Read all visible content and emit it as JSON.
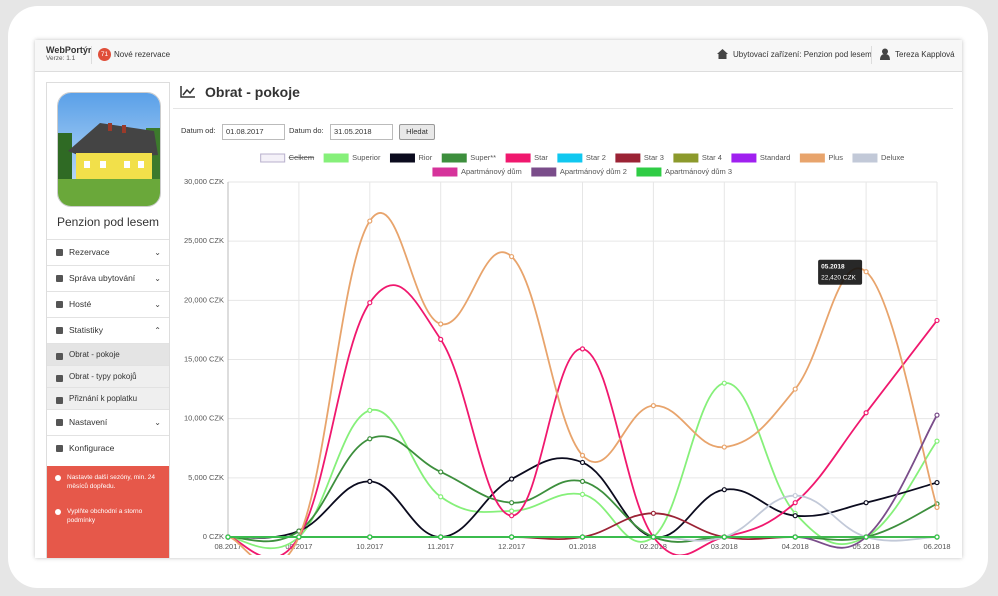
{
  "header": {
    "brand": "WebPortýr",
    "version": "Verze: 1.1",
    "badge": 71,
    "reservations": "Nové rezervace",
    "property": "Ubytovací zařízení: Penzion pod lesem",
    "user": "Tereza Kapplová"
  },
  "sidebar": {
    "property_name": "Penzion pod lesem",
    "menu": [
      "Rezervace",
      "Správa ubytování",
      "Hosté",
      "Statistiky"
    ],
    "submenu": [
      "Obrat - pokoje",
      "Obrat - typy pokojů",
      "Přiznání k poplatku"
    ],
    "menu2": [
      "Nastavení",
      "Konfigurace"
    ],
    "alerts": [
      "Nastavte další sezóny, min. 24 měsíců dopředu.",
      "Vyplňte obchodní a storno podmínky"
    ]
  },
  "page": {
    "title": "Obrat - pokoje",
    "date_from_label": "Datum od:",
    "date_from": "01.08.2017",
    "date_to_label": "Datum do:",
    "date_to": "31.05.2018",
    "search": "Hledat"
  },
  "chart_data": {
    "type": "line",
    "categories": [
      "08.2017",
      "09.2017",
      "10.2017",
      "11.2017",
      "12.2017",
      "01.2018",
      "02.2018",
      "03.2018",
      "04.2018",
      "05.2018",
      "06.2018"
    ],
    "ylim": [
      0,
      30000
    ],
    "yticks": [
      {
        "value": 0,
        "label": "0 CZK"
      },
      {
        "value": 5000,
        "label": "5,000 CZK"
      },
      {
        "value": 10000,
        "label": "10,000 CZK"
      },
      {
        "value": 15000,
        "label": "15,000 CZK"
      },
      {
        "value": 20000,
        "label": "20,000 CZK"
      },
      {
        "value": 25000,
        "label": "25,000 CZK"
      },
      {
        "value": 30000,
        "label": "30,000 CZK"
      }
    ],
    "grid": true,
    "legend": "top",
    "series": [
      {
        "name": "Celkem",
        "color": "#b8b0cc",
        "hidden": true,
        "values": [
          null,
          null,
          null,
          null,
          null,
          null,
          null,
          null,
          null,
          null,
          null
        ]
      },
      {
        "name": "Superior",
        "color": "#86f07a",
        "values": [
          0,
          0,
          10700,
          3400,
          2200,
          3600,
          0,
          13000,
          2000,
          0,
          8100
        ]
      },
      {
        "name": "Rior",
        "color": "#0b0b1e",
        "values": [
          0,
          500,
          4700,
          0,
          4900,
          6300,
          0,
          4000,
          1800,
          2900,
          4600
        ]
      },
      {
        "name": "Super**",
        "color": "#3d8f3d",
        "values": [
          0,
          500,
          8300,
          5500,
          2900,
          4700,
          0,
          0,
          0,
          0,
          2800
        ]
      },
      {
        "name": "Star",
        "color": "#f0186e",
        "values": [
          0,
          0,
          19800,
          16700,
          1800,
          15900,
          0,
          0,
          2900,
          10500,
          18300
        ]
      },
      {
        "name": "Star 2",
        "color": "#10c8f0",
        "values": [
          0,
          0,
          0,
          0,
          0,
          0,
          0,
          0,
          0,
          0,
          0
        ]
      },
      {
        "name": "Star 3",
        "color": "#9b2335",
        "values": [
          0,
          0,
          0,
          0,
          0,
          0,
          2000,
          0,
          0,
          0,
          0
        ]
      },
      {
        "name": "Star 4",
        "color": "#8c9a2c",
        "values": [
          0,
          0,
          0,
          0,
          0,
          0,
          0,
          0,
          0,
          0,
          0
        ]
      },
      {
        "name": "Standard",
        "color": "#a020f0",
        "values": [
          0,
          0,
          0,
          0,
          0,
          0,
          0,
          0,
          0,
          0,
          0
        ]
      },
      {
        "name": "Plus",
        "color": "#e8a46c",
        "values": [
          0,
          0,
          26700,
          18000,
          23700,
          6900,
          11100,
          7600,
          12500,
          22420,
          2500
        ]
      },
      {
        "name": "Deluxe",
        "color": "#c2c9d8",
        "values": [
          0,
          0,
          0,
          0,
          0,
          0,
          0,
          0,
          3500,
          0,
          0
        ]
      },
      {
        "name": "Apartmánový dům",
        "color": "#d6339b",
        "values": [
          0,
          0,
          0,
          0,
          0,
          0,
          0,
          0,
          0,
          0,
          0
        ]
      },
      {
        "name": "Apartmánový dům 2",
        "color": "#7a4d8a",
        "values": [
          0,
          0,
          0,
          0,
          0,
          0,
          0,
          0,
          0,
          0,
          10300
        ]
      },
      {
        "name": "Apartmánový dům 3",
        "color": "#2fcc45",
        "values": [
          0,
          0,
          0,
          0,
          0,
          0,
          0,
          0,
          0,
          0,
          0
        ]
      }
    ],
    "tooltip": {
      "title": "05.2018",
      "value": 22420,
      "label": "22,420 CZK"
    }
  }
}
